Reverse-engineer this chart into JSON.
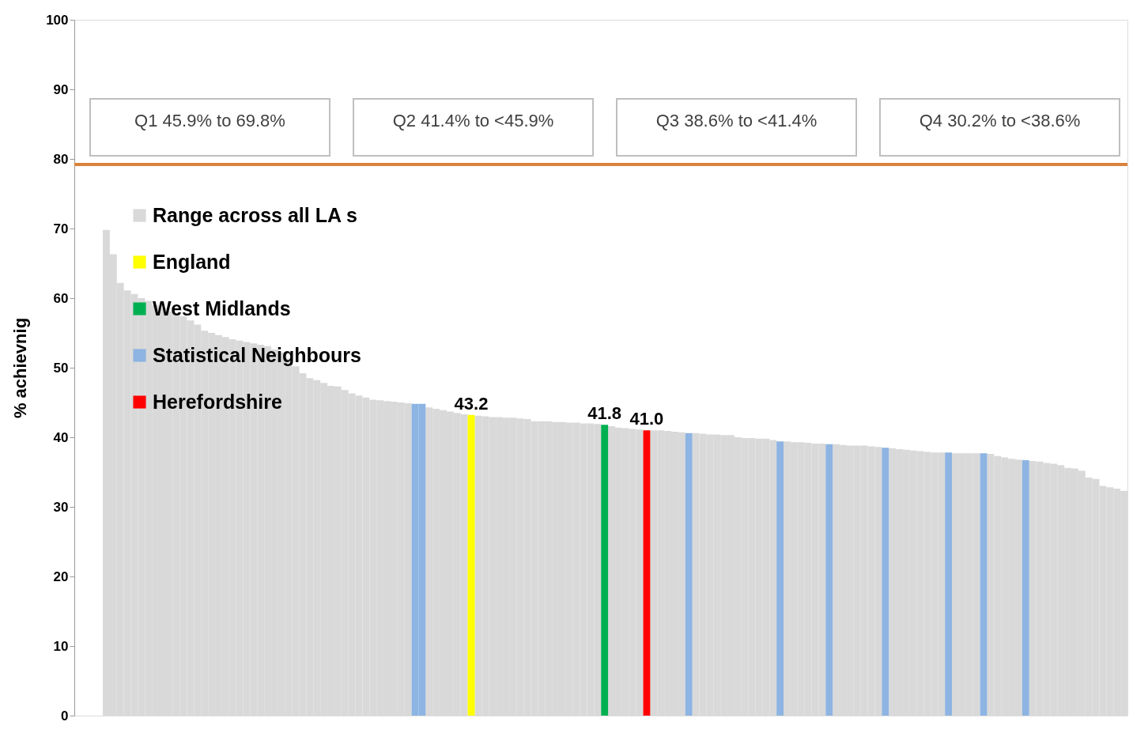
{
  "chart_data": {
    "type": "bar",
    "ylabel": "% achievnig",
    "categories": [
      null,
      null,
      null,
      null,
      null,
      null,
      null,
      null,
      null,
      null,
      null,
      null,
      null,
      null,
      null,
      null,
      null,
      null,
      null,
      null,
      null,
      null,
      null,
      null,
      null,
      null,
      null,
      null,
      null,
      null,
      null,
      null,
      null,
      null,
      null,
      null,
      null,
      null,
      null,
      null,
      null,
      null,
      null,
      null,
      null,
      null,
      null,
      null,
      null,
      null,
      null,
      null,
      null,
      null,
      null,
      null,
      null,
      null,
      null,
      null,
      null,
      null,
      null,
      null,
      null,
      null,
      null,
      null,
      null,
      null,
      null,
      null,
      null,
      null,
      null,
      null,
      null,
      null,
      null,
      null,
      null,
      null,
      null,
      null,
      null,
      null,
      null,
      null,
      null,
      null,
      null,
      null,
      null,
      null,
      null,
      null,
      null,
      null,
      null,
      null,
      null,
      null,
      null,
      null,
      null,
      null,
      null,
      null,
      null,
      null,
      null,
      null,
      null,
      null,
      null,
      null,
      null,
      null,
      null,
      null,
      null,
      null,
      null,
      null,
      null,
      null,
      null,
      null,
      null,
      null,
      null,
      null,
      null,
      null,
      null,
      null,
      null,
      null,
      null,
      null,
      null,
      null,
      null,
      null,
      null,
      null
    ],
    "series": [
      {
        "name": "Range across all LA s",
        "color": "#d9d9d9",
        "values": [
          69.8,
          66.3,
          62.2,
          61.1,
          60.6,
          60.0,
          59.6,
          59.0,
          58.5,
          58.1,
          57.7,
          57.4,
          56.8,
          56.2,
          55.3,
          55.0,
          54.7,
          54.4,
          54.1,
          53.9,
          53.7,
          53.5,
          53.3,
          53.1,
          52.6,
          52.2,
          51.3,
          50.2,
          49.2,
          48.5,
          48.2,
          47.8,
          47.4,
          47.3,
          46.8,
          46.3,
          46.0,
          45.7,
          45.4,
          45.3,
          45.2,
          45.1,
          45.0,
          44.9,
          null,
          null,
          44.3,
          44.1,
          43.9,
          43.7,
          43.5,
          43.3,
          null,
          43.1,
          43.0,
          42.9,
          42.9,
          42.8,
          42.8,
          42.7,
          42.6,
          42.3,
          42.3,
          42.3,
          42.2,
          42.2,
          42.1,
          42.1,
          42.0,
          42.0,
          41.9,
          null,
          41.6,
          41.4,
          41.3,
          41.2,
          41.1,
          null,
          41.0,
          41.0,
          40.9,
          40.8,
          40.7,
          null,
          40.6,
          40.5,
          40.4,
          40.4,
          40.3,
          40.3,
          40.0,
          39.9,
          39.9,
          39.8,
          39.8,
          39.6,
          null,
          39.4,
          39.3,
          39.3,
          39.2,
          39.1,
          39.1,
          null,
          39.0,
          38.9,
          38.8,
          38.8,
          38.8,
          38.7,
          38.6,
          null,
          38.4,
          38.3,
          38.2,
          38.1,
          38.0,
          37.9,
          37.8,
          37.8,
          null,
          37.7,
          37.7,
          37.7,
          37.7,
          null,
          37.6,
          37.3,
          37.1,
          36.9,
          36.8,
          null,
          36.6,
          36.5,
          36.3,
          36.2,
          36.0,
          35.6,
          35.5,
          35.2,
          34.2,
          34.0,
          33.0,
          32.8,
          32.6,
          32.3
        ]
      },
      {
        "name": "England",
        "color": "#ffff00",
        "value_labels": [
          null,
          null,
          null,
          null,
          null,
          null,
          null,
          null,
          null,
          null,
          null,
          null,
          null,
          null,
          null,
          null,
          null,
          null,
          null,
          null,
          null,
          null,
          null,
          null,
          null,
          null,
          null,
          null,
          null,
          null,
          null,
          null,
          null,
          null,
          null,
          null,
          null,
          null,
          null,
          null,
          null,
          null,
          null,
          null,
          null,
          null,
          null,
          null,
          null,
          null,
          null,
          null,
          "43.2",
          null,
          null,
          null,
          null,
          null,
          null,
          null,
          null,
          null,
          null,
          null,
          null,
          null,
          null,
          null,
          null,
          null,
          null,
          null,
          null,
          null,
          null,
          null,
          null,
          null,
          null,
          null,
          null,
          null,
          null,
          null,
          null,
          null,
          null,
          null,
          null,
          null,
          null,
          null,
          null,
          null,
          null,
          null,
          null,
          null,
          null,
          null,
          null,
          null,
          null,
          null,
          null,
          null,
          null,
          null,
          null,
          null,
          null,
          null,
          null,
          null,
          null,
          null,
          null,
          null,
          null,
          null,
          null,
          null,
          null,
          null,
          null,
          null,
          null,
          null,
          null,
          null,
          null,
          null,
          null,
          null,
          null,
          null,
          null,
          null,
          null,
          null,
          null,
          null,
          null,
          null,
          null,
          null
        ],
        "values": [
          null,
          null,
          null,
          null,
          null,
          null,
          null,
          null,
          null,
          null,
          null,
          null,
          null,
          null,
          null,
          null,
          null,
          null,
          null,
          null,
          null,
          null,
          null,
          null,
          null,
          null,
          null,
          null,
          null,
          null,
          null,
          null,
          null,
          null,
          null,
          null,
          null,
          null,
          null,
          null,
          null,
          null,
          null,
          null,
          null,
          null,
          null,
          null,
          null,
          null,
          null,
          null,
          43.2,
          null,
          null,
          null,
          null,
          null,
          null,
          null,
          null,
          null,
          null,
          null,
          null,
          null,
          null,
          null,
          null,
          null,
          null,
          null,
          null,
          null,
          null,
          null,
          null,
          null,
          null,
          null,
          null,
          null,
          null,
          null,
          null,
          null,
          null,
          null,
          null,
          null,
          null,
          null,
          null,
          null,
          null,
          null,
          null,
          null,
          null,
          null,
          null,
          null,
          null,
          null,
          null,
          null,
          null,
          null,
          null,
          null,
          null,
          null,
          null,
          null,
          null,
          null,
          null,
          null,
          null,
          null,
          null,
          null,
          null,
          null,
          null,
          null,
          null,
          null,
          null,
          null,
          null,
          null,
          null,
          null,
          null,
          null,
          null,
          null,
          null,
          null,
          null,
          null,
          null,
          null,
          null,
          null
        ]
      },
      {
        "name": "West Midlands",
        "color": "#00b050",
        "value_labels": [
          null,
          null,
          null,
          null,
          null,
          null,
          null,
          null,
          null,
          null,
          null,
          null,
          null,
          null,
          null,
          null,
          null,
          null,
          null,
          null,
          null,
          null,
          null,
          null,
          null,
          null,
          null,
          null,
          null,
          null,
          null,
          null,
          null,
          null,
          null,
          null,
          null,
          null,
          null,
          null,
          null,
          null,
          null,
          null,
          null,
          null,
          null,
          null,
          null,
          null,
          null,
          null,
          null,
          null,
          null,
          null,
          null,
          null,
          null,
          null,
          null,
          null,
          null,
          null,
          null,
          null,
          null,
          null,
          null,
          null,
          null,
          "41.8",
          null,
          null,
          null,
          null,
          null,
          null,
          null,
          null,
          null,
          null,
          null,
          null,
          null,
          null,
          null,
          null,
          null,
          null,
          null,
          null,
          null,
          null,
          null,
          null,
          null,
          null,
          null,
          null,
          null,
          null,
          null,
          null,
          null,
          null,
          null,
          null,
          null,
          null,
          null,
          null,
          null,
          null,
          null,
          null,
          null,
          null,
          null,
          null,
          null,
          null,
          null,
          null,
          null,
          null,
          null,
          null,
          null,
          null,
          null,
          null,
          null,
          null,
          null,
          null,
          null,
          null,
          null,
          null,
          null,
          null,
          null,
          null,
          null,
          null
        ],
        "values": [
          null,
          null,
          null,
          null,
          null,
          null,
          null,
          null,
          null,
          null,
          null,
          null,
          null,
          null,
          null,
          null,
          null,
          null,
          null,
          null,
          null,
          null,
          null,
          null,
          null,
          null,
          null,
          null,
          null,
          null,
          null,
          null,
          null,
          null,
          null,
          null,
          null,
          null,
          null,
          null,
          null,
          null,
          null,
          null,
          null,
          null,
          null,
          null,
          null,
          null,
          null,
          null,
          null,
          null,
          null,
          null,
          null,
          null,
          null,
          null,
          null,
          null,
          null,
          null,
          null,
          null,
          null,
          null,
          null,
          null,
          null,
          41.8,
          null,
          null,
          null,
          null,
          null,
          null,
          null,
          null,
          null,
          null,
          null,
          null,
          null,
          null,
          null,
          null,
          null,
          null,
          null,
          null,
          null,
          null,
          null,
          null,
          null,
          null,
          null,
          null,
          null,
          null,
          null,
          null,
          null,
          null,
          null,
          null,
          null,
          null,
          null,
          null,
          null,
          null,
          null,
          null,
          null,
          null,
          null,
          null,
          null,
          null,
          null,
          null,
          null,
          null,
          null,
          null,
          null,
          null,
          null,
          null,
          null,
          null,
          null,
          null,
          null,
          null,
          null,
          null,
          null,
          null,
          null,
          null,
          null,
          null
        ]
      },
      {
        "name": "Statistical Neighbours",
        "color": "#8db4e2",
        "values": [
          null,
          null,
          null,
          null,
          null,
          null,
          null,
          null,
          null,
          null,
          null,
          null,
          null,
          null,
          null,
          null,
          null,
          null,
          null,
          null,
          null,
          null,
          null,
          null,
          null,
          null,
          null,
          null,
          null,
          null,
          null,
          null,
          null,
          null,
          null,
          null,
          null,
          null,
          null,
          null,
          null,
          null,
          null,
          null,
          44.8,
          44.8,
          null,
          null,
          null,
          null,
          null,
          null,
          null,
          null,
          null,
          null,
          null,
          null,
          null,
          null,
          null,
          null,
          null,
          null,
          null,
          null,
          null,
          null,
          null,
          null,
          null,
          null,
          null,
          null,
          null,
          null,
          null,
          null,
          null,
          null,
          null,
          null,
          null,
          40.6,
          null,
          null,
          null,
          null,
          null,
          null,
          null,
          null,
          null,
          null,
          null,
          null,
          39.4,
          null,
          null,
          null,
          null,
          null,
          null,
          39.0,
          null,
          null,
          null,
          null,
          null,
          null,
          null,
          38.5,
          null,
          null,
          null,
          null,
          null,
          null,
          null,
          null,
          37.8,
          null,
          null,
          null,
          null,
          37.7,
          null,
          null,
          null,
          null,
          null,
          36.7,
          null,
          null,
          null,
          null,
          null,
          null,
          null,
          null,
          null,
          null,
          null,
          null,
          null,
          null
        ]
      },
      {
        "name": "Herefordshire",
        "color": "#ff0000",
        "value_labels": [
          null,
          null,
          null,
          null,
          null,
          null,
          null,
          null,
          null,
          null,
          null,
          null,
          null,
          null,
          null,
          null,
          null,
          null,
          null,
          null,
          null,
          null,
          null,
          null,
          null,
          null,
          null,
          null,
          null,
          null,
          null,
          null,
          null,
          null,
          null,
          null,
          null,
          null,
          null,
          null,
          null,
          null,
          null,
          null,
          null,
          null,
          null,
          null,
          null,
          null,
          null,
          null,
          null,
          null,
          null,
          null,
          null,
          null,
          null,
          null,
          null,
          null,
          null,
          null,
          null,
          null,
          null,
          null,
          null,
          null,
          null,
          null,
          null,
          null,
          null,
          null,
          null,
          "41.0",
          null,
          null,
          null,
          null,
          null,
          null,
          null,
          null,
          null,
          null,
          null,
          null,
          null,
          null,
          null,
          null,
          null,
          null,
          null,
          null,
          null,
          null,
          null,
          null,
          null,
          null,
          null,
          null,
          null,
          null,
          null,
          null,
          null,
          null,
          null,
          null,
          null,
          null,
          null,
          null,
          null,
          null,
          null,
          null,
          null,
          null,
          null,
          null,
          null,
          null,
          null,
          null,
          null,
          null,
          null,
          null,
          null,
          null,
          null,
          null,
          null,
          null,
          null,
          null,
          null,
          null,
          null,
          null
        ],
        "values": [
          null,
          null,
          null,
          null,
          null,
          null,
          null,
          null,
          null,
          null,
          null,
          null,
          null,
          null,
          null,
          null,
          null,
          null,
          null,
          null,
          null,
          null,
          null,
          null,
          null,
          null,
          null,
          null,
          null,
          null,
          null,
          null,
          null,
          null,
          null,
          null,
          null,
          null,
          null,
          null,
          null,
          null,
          null,
          null,
          null,
          null,
          null,
          null,
          null,
          null,
          null,
          null,
          null,
          null,
          null,
          null,
          null,
          null,
          null,
          null,
          null,
          null,
          null,
          null,
          null,
          null,
          null,
          null,
          null,
          null,
          null,
          null,
          null,
          null,
          null,
          null,
          null,
          41.0,
          null,
          null,
          null,
          null,
          null,
          null,
          null,
          null,
          null,
          null,
          null,
          null,
          null,
          null,
          null,
          null,
          null,
          null,
          null,
          null,
          null,
          null,
          null,
          null,
          null,
          null,
          null,
          null,
          null,
          null,
          null,
          null,
          null,
          null,
          null,
          null,
          null,
          null,
          null,
          null,
          null,
          null,
          null,
          null,
          null,
          null,
          null,
          null,
          null,
          null,
          null,
          null,
          null,
          null,
          null,
          null,
          null,
          null,
          null,
          null,
          null,
          null,
          null,
          null,
          null,
          null,
          null,
          null
        ]
      }
    ],
    "stacked": true,
    "ylim": [
      0,
      100
    ],
    "yticks": [
      0,
      10,
      20,
      30,
      40,
      50,
      60,
      70,
      80,
      90,
      100
    ],
    "tick_labels": "y",
    "grid": false,
    "legend": "top left",
    "ref_lines": [
      {
        "axis": "y",
        "value": 79.2,
        "color": "#d9823b"
      }
    ],
    "annotations": [
      "Q1   45.9% to 69.8%",
      "Q2   41.4% to <45.9%",
      "Q3   38.6% to <41.4%",
      "Q4   30.2% to <38.6%"
    ]
  }
}
